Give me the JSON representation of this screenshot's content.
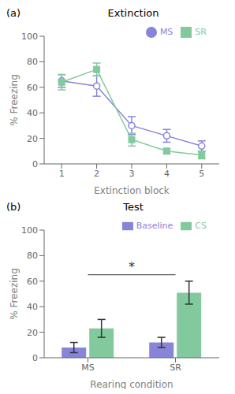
{
  "chart_data": [
    {
      "type": "line",
      "title": "Extinction",
      "xlabel": "Extinction block",
      "ylabel": "% Freezing",
      "x": [
        1,
        2,
        3,
        4,
        5
      ],
      "xlim": [
        0.5,
        5.5
      ],
      "xticks": [
        1,
        2,
        3,
        4,
        5
      ],
      "ylim": [
        0,
        100
      ],
      "yticks": [
        0,
        20,
        40,
        60,
        80,
        100
      ],
      "grid": false,
      "legend": "upper right",
      "series": [
        {
          "name": "MS",
          "color": "#8884d8",
          "marker": "circle",
          "values": [
            65,
            61,
            30,
            22,
            14
          ],
          "errors": [
            5,
            8,
            7,
            5,
            4
          ]
        },
        {
          "name": "SR",
          "color": "#82ca9d",
          "marker": "square",
          "values": [
            64,
            74,
            19,
            10,
            7
          ],
          "errors": [
            6,
            5,
            5,
            2,
            3
          ]
        }
      ],
      "annotations": [
        {
          "text": "(a)"
        }
      ]
    },
    {
      "type": "bar",
      "title": "Test",
      "xlabel": "Rearing condition",
      "ylabel": "% Freezing",
      "categories": [
        "MS",
        "SR"
      ],
      "ylim": [
        0,
        100
      ],
      "yticks": [
        0,
        20,
        40,
        60,
        80,
        100
      ],
      "grid": false,
      "legend": "upper right",
      "series": [
        {
          "name": "Baseline",
          "color": "#8884d8",
          "values": [
            8,
            12
          ],
          "errors": [
            4,
            4
          ]
        },
        {
          "name": "CS",
          "color": "#82ca9d",
          "values": [
            23,
            51
          ],
          "errors": [
            7,
            9
          ]
        }
      ],
      "annotations": [
        {
          "text": "(b)"
        },
        {
          "text": "*",
          "y": 65
        }
      ]
    }
  ]
}
